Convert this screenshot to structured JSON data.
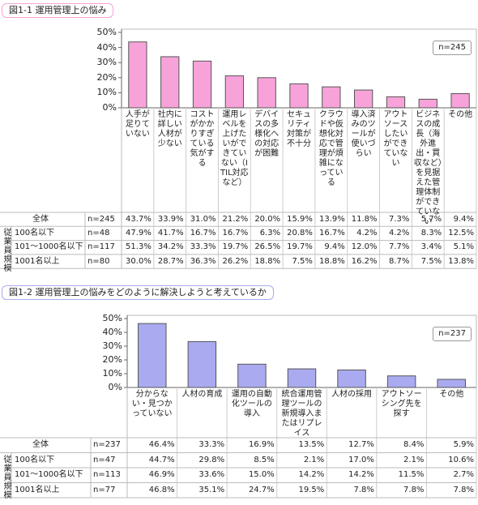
{
  "chart_data": [
    {
      "type": "bar",
      "title": "図1-1 運用管理上の悩み",
      "note": "n=245",
      "color": "#f7a3d9",
      "categories": [
        "人手が足りていない",
        "社内に詳しい人材が少ない",
        "コストがかかりすぎている気がする",
        "運用レベルを上げたいができていない（ITIL対応など）",
        "デバイスの多様化への対応が困難",
        "セキュリティ対策が不十分",
        "クラウドや仮想化対応で管理が煩雑になっている",
        "導入済みのツールが使いづらい",
        "アウトソースしたいができていない",
        "ビジネスの成長（海外進出・買収など）を見据えた管理体制ができていない",
        "その他"
      ],
      "values": [
        43.7,
        33.9,
        31.0,
        21.2,
        20.0,
        15.9,
        13.9,
        11.8,
        7.3,
        5.7,
        9.4
      ],
      "value_labels": [
        "43.7%",
        "33.9%",
        "31.0%",
        "21.2%",
        "20.0%",
        "15.9%",
        "13.9%",
        "11.8%",
        "7.3%",
        "5.7%",
        "9.4%"
      ],
      "ylim": [
        0,
        50
      ],
      "yticks": [
        {
          "value": 0,
          "label": "0%"
        },
        {
          "value": 10,
          "label": "10%"
        },
        {
          "value": 20,
          "label": "20%"
        },
        {
          "value": 30,
          "label": "30%"
        },
        {
          "value": 40,
          "label": "40%"
        },
        {
          "value": 50,
          "label": "50%"
        }
      ],
      "table": {
        "row_group": "従業員規模",
        "total": {
          "label": "全体",
          "n": "n=245"
        },
        "rows": [
          {
            "label": "100名以下",
            "n": "n=48",
            "values": [
              "47.9%",
              "41.7%",
              "16.7%",
              "16.7%",
              "6.3%",
              "20.8%",
              "16.7%",
              "4.2%",
              "4.2%",
              "8.3%",
              "12.5%"
            ]
          },
          {
            "label": "101〜1000名以下",
            "n": "n=117",
            "values": [
              "51.3%",
              "34.2%",
              "33.3%",
              "19.7%",
              "26.5%",
              "19.7%",
              "9.4%",
              "12.0%",
              "7.7%",
              "3.4%",
              "5.1%"
            ]
          },
          {
            "label": "1001名以上",
            "n": "n=80",
            "values": [
              "30.0%",
              "28.7%",
              "36.3%",
              "26.2%",
              "18.8%",
              "7.5%",
              "18.8%",
              "16.2%",
              "8.7%",
              "7.5%",
              "13.8%"
            ]
          }
        ]
      }
    },
    {
      "type": "bar",
      "title": "図1-2 運用管理上の悩みをどのように解決しようと考えているか",
      "note": "n=237",
      "color": "#aaaaf0",
      "categories": [
        "分からない・見つかっていない",
        "人材の育成",
        "運用の自動化ツールの導入",
        "統合運用管理ツールの新規導入またはリプレイス",
        "人材の採用",
        "アウトソーシング先を探す",
        "その他"
      ],
      "values": [
        46.4,
        33.3,
        16.9,
        13.5,
        12.7,
        8.4,
        5.9
      ],
      "value_labels": [
        "46.4%",
        "33.3%",
        "16.9%",
        "13.5%",
        "12.7%",
        "8.4%",
        "5.9%"
      ],
      "ylim": [
        0,
        50
      ],
      "yticks": [
        {
          "value": 0,
          "label": "0%"
        },
        {
          "value": 10,
          "label": "10%"
        },
        {
          "value": 20,
          "label": "20%"
        },
        {
          "value": 30,
          "label": "30%"
        },
        {
          "value": 40,
          "label": "40%"
        },
        {
          "value": 50,
          "label": "50%"
        }
      ],
      "table": {
        "row_group": "従業員規模",
        "total": {
          "label": "全体",
          "n": "n=237"
        },
        "rows": [
          {
            "label": "100名以下",
            "n": "n=47",
            "values": [
              "44.7%",
              "29.8%",
              "8.5%",
              "2.1%",
              "17.0%",
              "2.1%",
              "10.6%"
            ]
          },
          {
            "label": "101〜1000名以下",
            "n": "n=113",
            "values": [
              "46.9%",
              "33.6%",
              "15.0%",
              "14.2%",
              "14.2%",
              "11.5%",
              "2.7%"
            ]
          },
          {
            "label": "1001名以上",
            "n": "n=77",
            "values": [
              "46.8%",
              "35.1%",
              "24.7%",
              "19.5%",
              "7.8%",
              "7.8%",
              "7.8%"
            ]
          }
        ]
      }
    }
  ]
}
